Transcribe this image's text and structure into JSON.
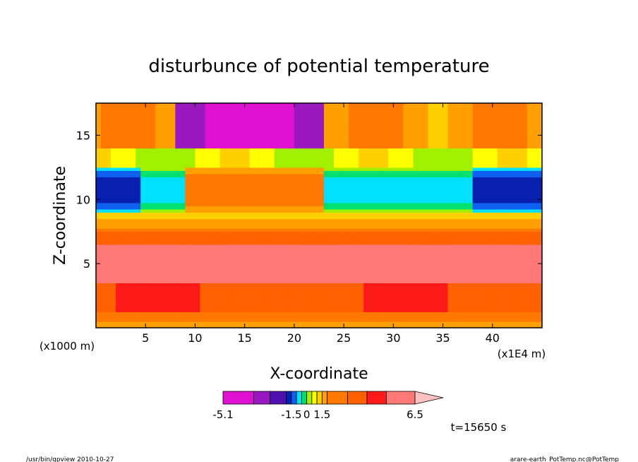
{
  "chart_data": {
    "type": "heatmap",
    "title": "disturbunce of potential temperature",
    "xlabel": "X-coordinate",
    "ylabel": "Z-coordinate",
    "x_units_left": "(x1000 m)",
    "x_units_right": "(x1E4 m)",
    "xlim": [
      0,
      45
    ],
    "ylim": [
      0,
      17.5
    ],
    "x_ticks": [
      "5",
      "10",
      "15",
      "20",
      "25",
      "30",
      "35",
      "40"
    ],
    "x_tick_values": [
      5,
      10,
      15,
      20,
      25,
      30,
      35,
      40
    ],
    "y_ticks": [
      "5",
      "10",
      "15"
    ],
    "y_tick_values": [
      5,
      10,
      15
    ],
    "colorbar": {
      "labels": [
        "-5.1",
        "-1.5",
        "0",
        "1.5",
        "6.5"
      ],
      "label_values": [
        -5.1,
        -1.5,
        0,
        1.5,
        6.5
      ],
      "levels": [
        -5.1,
        -3.9,
        -3.0,
        -2.4,
        -1.5,
        -1.0,
        -0.5,
        0,
        0.5,
        1.0,
        1.5,
        2.5,
        3.5,
        4.5,
        5.5,
        6.5
      ],
      "colors": [
        "#e010d0",
        "#9a18c0",
        "#5010b0",
        "#0820b0",
        "#1060f0",
        "#00e0ff",
        "#00e070",
        "#a0f000",
        "#ffff00",
        "#ffd000",
        "#ffa000",
        "#ff7800",
        "#ff6000",
        "#ff1a1a",
        "#ff7878"
      ],
      "overflow_color": "#ffc0c0"
    },
    "grid": false,
    "annotation_time": "t=15650 s"
  },
  "footer": {
    "left": "/usr/bin/gpview   2010-10-27",
    "right": "arare-earth_PotTemp.nc@PotTemp"
  }
}
